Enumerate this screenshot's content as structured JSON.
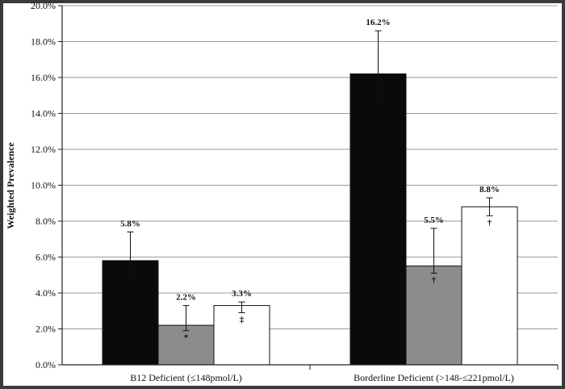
{
  "chart_data": {
    "type": "bar",
    "ylabel": "Weighted Prevalence",
    "xlabel": "",
    "title": "",
    "ylim": [
      0,
      20
    ],
    "ytick_step": 2,
    "ytick_format": "percent_1dp",
    "grid": true,
    "categories": [
      "B12 Deficient (≤148pmol/L)",
      "Borderline Deficient (>148-≤221pmol/L)"
    ],
    "series": [
      {
        "color": "#0a0a0a",
        "values": [
          5.8,
          16.2
        ],
        "error_low": [
          5.0,
          14.4
        ],
        "error_high": [
          7.4,
          18.6
        ],
        "value_labels": [
          "5.8%",
          "16.2%"
        ],
        "markers": [
          "",
          ""
        ]
      },
      {
        "color": "#8c8c8c",
        "values": [
          2.2,
          5.5
        ],
        "error_low": [
          1.9,
          5.1
        ],
        "error_high": [
          3.3,
          7.6
        ],
        "value_labels": [
          "2.2%",
          "5.5%"
        ],
        "markers": [
          "*",
          "†"
        ]
      },
      {
        "color": "#ffffff",
        "values": [
          3.3,
          8.8
        ],
        "error_low": [
          2.9,
          8.3
        ],
        "error_high": [
          3.5,
          9.3
        ],
        "value_labels": [
          "3.3%",
          "8.8%"
        ],
        "markers": [
          "‡",
          "†"
        ]
      }
    ]
  }
}
